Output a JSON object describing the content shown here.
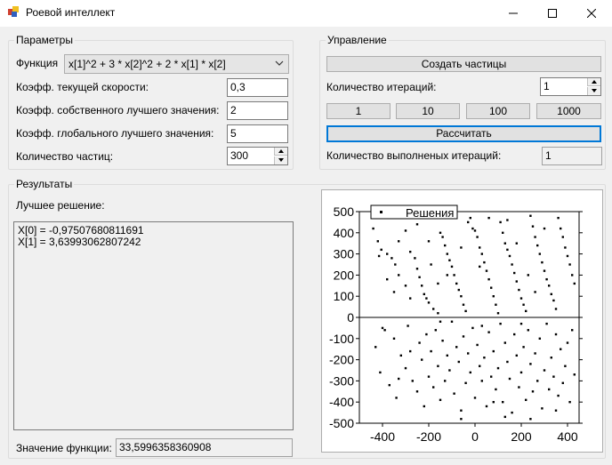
{
  "window": {
    "title": "Роевой интеллект"
  },
  "params": {
    "group_title": "Параметры",
    "function_label": "Функция",
    "function_value": "x[1]^2 + 3 * x[2]^2 + 2 * x[1] * x[2]",
    "velocity_label": "Коэфф. текущей скорости:",
    "velocity_value": "0,3",
    "own_best_label": "Коэфф. собственного лучшего значения:",
    "own_best_value": "2",
    "global_best_label": "Коэфф. глобального лучшего значения:",
    "global_best_value": "5",
    "particles_label": "Количество частиц:",
    "particles_value": "300"
  },
  "control": {
    "group_title": "Управление",
    "create_button": "Создать частицы",
    "iterations_label": "Количество итераций:",
    "iterations_value": "1",
    "preset_buttons": [
      "1",
      "10",
      "100",
      "1000"
    ],
    "calculate_button": "Рассчитать",
    "done_label": "Количество выполненых итераций:",
    "done_value": "1"
  },
  "results": {
    "group_title": "Результаты",
    "best_label": "Лучшее решение:",
    "best_lines": [
      "X[0] = -0,97507680811691",
      "X[1] = 3,63993062807242"
    ],
    "function_value_label": "Значение функции:",
    "function_value": "33,5996358360908"
  },
  "chart_data": {
    "type": "scatter",
    "legend": [
      "Решения"
    ],
    "legend_position": "top-left",
    "xlim": [
      -500,
      450
    ],
    "ylim": [
      -500,
      500
    ],
    "xticks": [
      -400,
      -200,
      0,
      200,
      400
    ],
    "yticks": [
      500,
      400,
      300,
      200,
      100,
      0,
      -100,
      -200,
      -300,
      -400,
      -500
    ],
    "zero_line": true,
    "series": [
      {
        "name": "Решения",
        "color": "#000000",
        "points": [
          [
            -440,
            420
          ],
          [
            -420,
            360
          ],
          [
            -415,
            290
          ],
          [
            -405,
            320
          ],
          [
            -380,
            300
          ],
          [
            -360,
            280
          ],
          [
            -345,
            250
          ],
          [
            -330,
            200
          ],
          [
            -300,
            150
          ],
          [
            -280,
            310
          ],
          [
            -260,
            280
          ],
          [
            -250,
            230
          ],
          [
            -240,
            190
          ],
          [
            -230,
            150
          ],
          [
            -220,
            110
          ],
          [
            -210,
            90
          ],
          [
            -200,
            70
          ],
          [
            -180,
            40
          ],
          [
            -160,
            20
          ],
          [
            -150,
            400
          ],
          [
            -140,
            380
          ],
          [
            -130,
            340
          ],
          [
            -120,
            300
          ],
          [
            -110,
            270
          ],
          [
            -100,
            240
          ],
          [
            -90,
            200
          ],
          [
            -80,
            160
          ],
          [
            -70,
            130
          ],
          [
            -60,
            100
          ],
          [
            -50,
            60
          ],
          [
            -40,
            30
          ],
          [
            -30,
            450
          ],
          [
            -20,
            470
          ],
          [
            -10,
            420
          ],
          [
            0,
            410
          ],
          [
            10,
            380
          ],
          [
            20,
            330
          ],
          [
            30,
            300
          ],
          [
            40,
            260
          ],
          [
            50,
            220
          ],
          [
            60,
            180
          ],
          [
            70,
            140
          ],
          [
            80,
            100
          ],
          [
            90,
            60
          ],
          [
            100,
            20
          ],
          [
            110,
            450
          ],
          [
            120,
            400
          ],
          [
            130,
            350
          ],
          [
            140,
            320
          ],
          [
            150,
            290
          ],
          [
            160,
            250
          ],
          [
            170,
            210
          ],
          [
            180,
            170
          ],
          [
            190,
            130
          ],
          [
            200,
            90
          ],
          [
            210,
            60
          ],
          [
            220,
            30
          ],
          [
            240,
            480
          ],
          [
            250,
            430
          ],
          [
            260,
            380
          ],
          [
            270,
            340
          ],
          [
            280,
            300
          ],
          [
            290,
            260
          ],
          [
            300,
            220
          ],
          [
            310,
            180
          ],
          [
            320,
            150
          ],
          [
            330,
            110
          ],
          [
            340,
            80
          ],
          [
            350,
            40
          ],
          [
            360,
            470
          ],
          [
            370,
            420
          ],
          [
            380,
            380
          ],
          [
            390,
            330
          ],
          [
            400,
            290
          ],
          [
            410,
            250
          ],
          [
            420,
            200
          ],
          [
            430,
            160
          ],
          [
            -300,
            410
          ],
          [
            -250,
            440
          ],
          [
            -200,
            360
          ],
          [
            -350,
            120
          ],
          [
            -280,
            90
          ],
          [
            -190,
            250
          ],
          [
            60,
            470
          ],
          [
            140,
            460
          ],
          [
            230,
            200
          ],
          [
            300,
            420
          ],
          [
            180,
            350
          ],
          [
            -60,
            330
          ],
          [
            -120,
            200
          ],
          [
            260,
            120
          ],
          [
            -330,
            360
          ],
          [
            -380,
            180
          ],
          [
            20,
            240
          ],
          [
            -160,
            160
          ],
          [
            -430,
            -140
          ],
          [
            -410,
            -260
          ],
          [
            -390,
            -60
          ],
          [
            -370,
            -320
          ],
          [
            -350,
            -100
          ],
          [
            -340,
            -380
          ],
          [
            -320,
            -180
          ],
          [
            -300,
            -240
          ],
          [
            -290,
            -40
          ],
          [
            -270,
            -300
          ],
          [
            -250,
            -350
          ],
          [
            -240,
            -120
          ],
          [
            -230,
            -200
          ],
          [
            -220,
            -420
          ],
          [
            -210,
            -80
          ],
          [
            -200,
            -280
          ],
          [
            -190,
            -160
          ],
          [
            -180,
            -330
          ],
          [
            -170,
            -60
          ],
          [
            -160,
            -230
          ],
          [
            -150,
            -390
          ],
          [
            -140,
            -110
          ],
          [
            -130,
            -300
          ],
          [
            -120,
            -180
          ],
          [
            -110,
            -250
          ],
          [
            -100,
            -20
          ],
          [
            -90,
            -360
          ],
          [
            -80,
            -140
          ],
          [
            -70,
            -210
          ],
          [
            -60,
            -440
          ],
          [
            -50,
            -90
          ],
          [
            -40,
            -310
          ],
          [
            -30,
            -170
          ],
          [
            -20,
            -260
          ],
          [
            -10,
            -50
          ],
          [
            0,
            -380
          ],
          [
            10,
            -130
          ],
          [
            20,
            -230
          ],
          [
            30,
            -300
          ],
          [
            40,
            -190
          ],
          [
            50,
            -420
          ],
          [
            60,
            -70
          ],
          [
            70,
            -280
          ],
          [
            80,
            -160
          ],
          [
            90,
            -340
          ],
          [
            100,
            -240
          ],
          [
            110,
            -30
          ],
          [
            120,
            -400
          ],
          [
            130,
            -120
          ],
          [
            140,
            -210
          ],
          [
            150,
            -290
          ],
          [
            160,
            -450
          ],
          [
            170,
            -80
          ],
          [
            180,
            -180
          ],
          [
            190,
            -330
          ],
          [
            200,
            -260
          ],
          [
            210,
            -140
          ],
          [
            220,
            -390
          ],
          [
            230,
            -60
          ],
          [
            240,
            -220
          ],
          [
            250,
            -350
          ],
          [
            260,
            -170
          ],
          [
            270,
            -300
          ],
          [
            280,
            -100
          ],
          [
            290,
            -430
          ],
          [
            300,
            -250
          ],
          [
            310,
            -30
          ],
          [
            320,
            -340
          ],
          [
            330,
            -190
          ],
          [
            340,
            -280
          ],
          [
            350,
            -80
          ],
          [
            360,
            -370
          ],
          [
            370,
            -150
          ],
          [
            380,
            -310
          ],
          [
            390,
            -230
          ],
          [
            400,
            -120
          ],
          [
            410,
            -400
          ],
          [
            420,
            -60
          ],
          [
            430,
            -270
          ],
          [
            -400,
            -50
          ],
          [
            -280,
            -160
          ],
          [
            -150,
            -20
          ],
          [
            30,
            -40
          ],
          [
            130,
            -470
          ],
          [
            240,
            -480
          ],
          [
            350,
            -440
          ],
          [
            -60,
            -480
          ],
          [
            -330,
            -290
          ],
          [
            200,
            -30
          ],
          [
            80,
            -400
          ]
        ]
      }
    ]
  }
}
